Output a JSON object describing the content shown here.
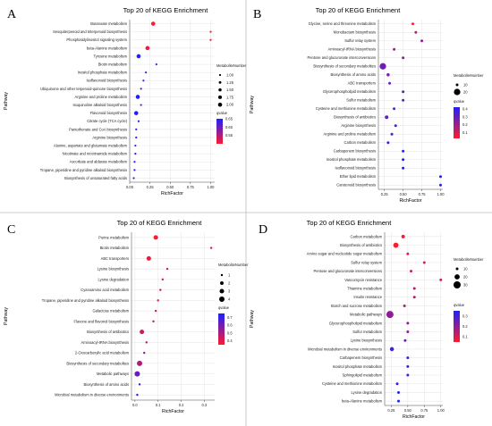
{
  "colors": {
    "qvalue_low": "#ff1a2e",
    "qvalue_high": "#1f1fff",
    "divider": "#bdbdbd"
  },
  "chart_data": [
    {
      "panel": "A",
      "type": "scatter",
      "title": "Top 20 of KEGG Enrichment",
      "xlabel": "RichFactor",
      "ylabel": "Pathway",
      "xlim": [
        0,
        1.05
      ],
      "xticks": [
        "0.00",
        "0.25",
        "0.50",
        "0.75",
        "1.00"
      ],
      "xtick_values": [
        0,
        0.25,
        0.5,
        0.75,
        1.0
      ],
      "size_legend_title": "MetaboliteNumber",
      "size_legend": [
        1.0,
        1.25,
        1.5,
        1.75,
        2.0
      ],
      "size_legend_labels": [
        "1.00",
        "1.25",
        "1.50",
        "1.75",
        "2.00"
      ],
      "color_legend_title": "qvalue",
      "color_range": [
        0.5,
        0.65
      ],
      "color_ticks": [
        0.65,
        0.6,
        0.55
      ],
      "color_tick_labels": [
        "0.65",
        "0.60",
        "0.55"
      ],
      "points": [
        {
          "pathway": "Butanoate metabolism",
          "x": 0.29,
          "count": 2,
          "q": 0.5
        },
        {
          "pathway": "Sesquiterpenoid and triterpenoid biosynthesis",
          "x": 1.0,
          "count": 1,
          "q": 0.5
        },
        {
          "pathway": "Phosphatidylinositol signaling system",
          "x": 1.0,
          "count": 1,
          "q": 0.5
        },
        {
          "pathway": "beta-Alanine metabolism",
          "x": 0.22,
          "count": 2,
          "q": 0.51
        },
        {
          "pathway": "Tyrosine metabolism",
          "x": 0.11,
          "count": 2,
          "q": 0.65
        },
        {
          "pathway": "Biotin metabolism",
          "x": 0.33,
          "count": 1,
          "q": 0.63
        },
        {
          "pathway": "Inositol phosphate metabolism",
          "x": 0.2,
          "count": 1,
          "q": 0.62
        },
        {
          "pathway": "Isoflavonoid biosynthesis",
          "x": 0.17,
          "count": 1,
          "q": 0.62
        },
        {
          "pathway": "Ubiquinone and other terpenoid-quinone biosynthesis",
          "x": 0.14,
          "count": 1,
          "q": 0.62
        },
        {
          "pathway": "Arginine and proline metabolism",
          "x": 0.1,
          "count": 2,
          "q": 0.65
        },
        {
          "pathway": "Isoquinoline alkaloid biosynthesis",
          "x": 0.14,
          "count": 1,
          "q": 0.63
        },
        {
          "pathway": "Flavonoid biosynthesis",
          "x": 0.08,
          "count": 2,
          "q": 0.65
        },
        {
          "pathway": "Citrate cycle (TCA cycle)",
          "x": 0.11,
          "count": 1,
          "q": 0.64
        },
        {
          "pathway": "Pantothenate and CoA biosynthesis",
          "x": 0.08,
          "count": 1,
          "q": 0.64
        },
        {
          "pathway": "Arginine biosynthesis",
          "x": 0.08,
          "count": 1,
          "q": 0.64
        },
        {
          "pathway": "Alanine, aspartate and glutamate metabolism",
          "x": 0.07,
          "count": 1,
          "q": 0.64
        },
        {
          "pathway": "Nicotinate and nicotinamide metabolism",
          "x": 0.07,
          "count": 1,
          "q": 0.64
        },
        {
          "pathway": "Ascorbate and aldarate metabolism",
          "x": 0.06,
          "count": 1,
          "q": 0.64
        },
        {
          "pathway": "Tropane, piperidine and pyridine alkaloid biosynthesis",
          "x": 0.06,
          "count": 1,
          "q": 0.64
        },
        {
          "pathway": "Biosynthesis of unsaturated fatty acids",
          "x": 0.05,
          "count": 1,
          "q": 0.64
        }
      ]
    },
    {
      "panel": "B",
      "type": "scatter",
      "title": "Top 20 of KEGG Enrichment",
      "xlabel": "RichFactor",
      "ylabel": "Pathway",
      "xlim": [
        0.17,
        1.03
      ],
      "xticks": [
        "0.25",
        "0.50",
        "0.75",
        "1.00"
      ],
      "xtick_values": [
        0.25,
        0.5,
        0.75,
        1.0
      ],
      "size_legend_title": "MetaboliteNumber",
      "size_legend": [
        10,
        20
      ],
      "size_legend_labels": [
        "10",
        "20"
      ],
      "color_legend_title": "qvalue",
      "color_range": [
        0.03,
        0.42
      ],
      "color_ticks": [
        0.4,
        0.3,
        0.2,
        0.1
      ],
      "color_tick_labels": [
        "0.4",
        "0.3",
        "0.2",
        "0.1"
      ],
      "points": [
        {
          "pathway": "Glycine, serine and threonine metabolism",
          "x": 0.63,
          "count": 8,
          "q": 0.03
        },
        {
          "pathway": "Monobactam biosynthesis",
          "x": 0.67,
          "count": 4,
          "q": 0.15
        },
        {
          "pathway": "Sulfur relay system",
          "x": 0.75,
          "count": 3,
          "q": 0.22
        },
        {
          "pathway": "Aminoacyl-tRNA biosynthesis",
          "x": 0.38,
          "count": 8,
          "q": 0.2
        },
        {
          "pathway": "Pentose and glucuronate interconversions",
          "x": 0.5,
          "count": 4,
          "q": 0.25
        },
        {
          "pathway": "Biosynthesis of secondary metabolites",
          "x": 0.23,
          "count": 21,
          "q": 0.28
        },
        {
          "pathway": "Biosynthesis of amino acids",
          "x": 0.3,
          "count": 11,
          "q": 0.27
        },
        {
          "pathway": "ABC transporters",
          "x": 0.32,
          "count": 10,
          "q": 0.3
        },
        {
          "pathway": "Glycerophospholipid metabolism",
          "x": 0.5,
          "count": 3,
          "q": 0.33
        },
        {
          "pathway": "Sulfur metabolism",
          "x": 0.5,
          "count": 3,
          "q": 0.33
        },
        {
          "pathway": "Cysteine and methionine metabolism",
          "x": 0.38,
          "count": 6,
          "q": 0.32
        },
        {
          "pathway": "Biosynthesis of antibiotics",
          "x": 0.28,
          "count": 12,
          "q": 0.3
        },
        {
          "pathway": "Arginine biosynthesis",
          "x": 0.4,
          "count": 4,
          "q": 0.35
        },
        {
          "pathway": "Arginine and proline metabolism",
          "x": 0.35,
          "count": 6,
          "q": 0.35
        },
        {
          "pathway": "Carbon metabolism",
          "x": 0.3,
          "count": 9,
          "q": 0.38
        },
        {
          "pathway": "Carbapenem biosynthesis",
          "x": 0.5,
          "count": 2,
          "q": 0.42
        },
        {
          "pathway": "Inositol phosphate metabolism",
          "x": 0.5,
          "count": 2,
          "q": 0.42
        },
        {
          "pathway": "Isoflavonoid biosynthesis",
          "x": 0.5,
          "count": 2,
          "q": 0.42
        },
        {
          "pathway": "Ether lipid metabolism",
          "x": 1.0,
          "count": 1,
          "q": 0.42
        },
        {
          "pathway": "Carotenoid biosynthesis",
          "x": 1.0,
          "count": 1,
          "q": 0.42
        }
      ]
    },
    {
      "panel": "C",
      "type": "scatter",
      "title": "Top 20 of KEGG Enrichment",
      "xlabel": "RichFactor",
      "ylabel": "Pathway",
      "xlim": [
        -0.015,
        0.345
      ],
      "xticks": [
        "0.0",
        "0.1",
        "0.2",
        "0.3"
      ],
      "xtick_values": [
        0,
        0.1,
        0.2,
        0.3
      ],
      "size_legend_title": "MetaboliteNumber",
      "size_legend": [
        1,
        2,
        3,
        4
      ],
      "size_legend_labels": [
        "1",
        "2",
        "3",
        "4"
      ],
      "color_legend_title": "qvalue",
      "color_range": [
        0.35,
        0.75
      ],
      "color_ticks": [
        0.7,
        0.6,
        0.5,
        0.4
      ],
      "color_tick_labels": [
        "0.7",
        "0.6",
        "0.5",
        "0.4"
      ],
      "points": [
        {
          "pathway": "Purine metabolism",
          "x": 0.09,
          "count": 3,
          "q": 0.36
        },
        {
          "pathway": "Biotin metabolism",
          "x": 0.33,
          "count": 1,
          "q": 0.4
        },
        {
          "pathway": "ABC transporters",
          "x": 0.06,
          "count": 3,
          "q": 0.38
        },
        {
          "pathway": "Lysine biosynthesis",
          "x": 0.14,
          "count": 1,
          "q": 0.42
        },
        {
          "pathway": "Lysine degradation",
          "x": 0.12,
          "count": 1,
          "q": 0.42
        },
        {
          "pathway": "Cyanoamino acid metabolism",
          "x": 0.11,
          "count": 1,
          "q": 0.43
        },
        {
          "pathway": "Tropane, piperidine and pyridine alkaloid biosynthesis",
          "x": 0.1,
          "count": 1,
          "q": 0.43
        },
        {
          "pathway": "Galactose metabolism",
          "x": 0.09,
          "count": 1,
          "q": 0.44
        },
        {
          "pathway": "Flavone and flavonol biosynthesis",
          "x": 0.08,
          "count": 1,
          "q": 0.44
        },
        {
          "pathway": "Biosynthesis of antibiotics",
          "x": 0.03,
          "count": 3,
          "q": 0.45
        },
        {
          "pathway": "Aminoacyl-tRNA biosynthesis",
          "x": 0.05,
          "count": 1,
          "q": 0.5
        },
        {
          "pathway": "2-Oxocarboxylic acid metabolism",
          "x": 0.04,
          "count": 1,
          "q": 0.55
        },
        {
          "pathway": "Biosynthesis of secondary metabolites",
          "x": 0.02,
          "count": 4,
          "q": 0.5
        },
        {
          "pathway": "Metabolic pathways",
          "x": 0.01,
          "count": 4,
          "q": 0.62
        },
        {
          "pathway": "Biosynthesis of amino acids",
          "x": 0.02,
          "count": 1,
          "q": 0.7
        },
        {
          "pathway": "Microbial metabolism in diverse environments",
          "x": 0.01,
          "count": 1,
          "q": 0.75
        }
      ]
    },
    {
      "panel": "D",
      "type": "scatter",
      "title": "Top 20 of KEGG Enrichment",
      "xlabel": "RichFactor",
      "ylabel": "Pathway",
      "xlim": [
        0.15,
        1.03
      ],
      "xticks": [
        "0.25",
        "0.50",
        "0.75",
        "1.00"
      ],
      "xtick_values": [
        0.25,
        0.5,
        0.75,
        1.0
      ],
      "size_legend_title": "MetaboliteNumber",
      "size_legend": [
        10,
        20,
        30
      ],
      "size_legend_labels": [
        "10",
        "20",
        "30"
      ],
      "color_legend_title": "qvalue",
      "color_range": [
        0.05,
        0.35
      ],
      "color_ticks": [
        0.3,
        0.2,
        0.1
      ],
      "color_tick_labels": [
        "0.3",
        "0.2",
        "0.1"
      ],
      "points": [
        {
          "pathway": "Carbon metabolism",
          "x": 0.43,
          "count": 13,
          "q": 0.05
        },
        {
          "pathway": "Biosynthesis of antibiotics",
          "x": 0.32,
          "count": 20,
          "q": 0.05
        },
        {
          "pathway": "Amino sugar and nucleotide sugar metabolism",
          "x": 0.5,
          "count": 5,
          "q": 0.08
        },
        {
          "pathway": "Sulfur relay system",
          "x": 0.75,
          "count": 3,
          "q": 0.08
        },
        {
          "pathway": "Pentose and glucuronate interconversions",
          "x": 0.55,
          "count": 4,
          "q": 0.1
        },
        {
          "pathway": "Vancomycin resistance",
          "x": 1.0,
          "count": 2,
          "q": 0.1
        },
        {
          "pathway": "Thiamine metabolism",
          "x": 0.6,
          "count": 3,
          "q": 0.15
        },
        {
          "pathway": "Insulin resistance",
          "x": 0.6,
          "count": 3,
          "q": 0.15
        },
        {
          "pathway": "Starch and sucrose metabolism",
          "x": 0.45,
          "count": 5,
          "q": 0.15
        },
        {
          "pathway": "Metabolic pathways",
          "x": 0.23,
          "count": 33,
          "q": 0.2
        },
        {
          "pathway": "Glycerophospholipid metabolism",
          "x": 0.5,
          "count": 4,
          "q": 0.2
        },
        {
          "pathway": "Sulfur metabolism",
          "x": 0.5,
          "count": 4,
          "q": 0.2
        },
        {
          "pathway": "Lysine biosynthesis",
          "x": 0.46,
          "count": 4,
          "q": 0.25
        },
        {
          "pathway": "Microbial metabolism in diverse environments",
          "x": 0.26,
          "count": 15,
          "q": 0.3
        },
        {
          "pathway": "Carbapenem biosynthesis",
          "x": 0.5,
          "count": 2,
          "q": 0.3
        },
        {
          "pathway": "Inositol phosphate metabolism",
          "x": 0.5,
          "count": 2,
          "q": 0.3
        },
        {
          "pathway": "Sphingolipid metabolism",
          "x": 0.5,
          "count": 2,
          "q": 0.3
        },
        {
          "pathway": "Cysteine and methionine metabolism",
          "x": 0.34,
          "count": 5,
          "q": 0.33
        },
        {
          "pathway": "Lysine degradation",
          "x": 0.36,
          "count": 4,
          "q": 0.35
        },
        {
          "pathway": "beta-Alanine metabolism",
          "x": 0.36,
          "count": 4,
          "q": 0.35
        }
      ]
    }
  ]
}
